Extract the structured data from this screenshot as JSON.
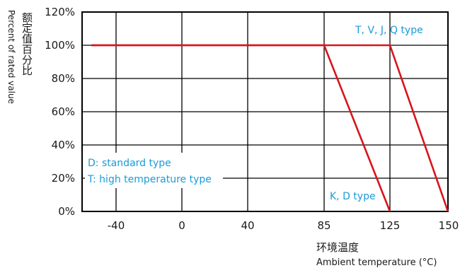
{
  "chart_data": {
    "type": "line",
    "ylabel_cn": "额定值百分比",
    "ylabel_en": "Percent of rated value",
    "xlabel_cn": "环境温度",
    "xlabel_en": "Ambient temperature (°C)",
    "x_ticks": [
      "-40",
      "0",
      "40",
      "85",
      "125",
      "150"
    ],
    "y_ticks": [
      "0%",
      "20%",
      "40%",
      "60%",
      "80%",
      "100%",
      "120%"
    ],
    "ylim": [
      0,
      120
    ],
    "grid": true,
    "series": [
      {
        "name": "T, V, J, Q type",
        "color": "#d8141c",
        "x": [
          -55,
          125,
          150
        ],
        "y": [
          100,
          100,
          0
        ]
      },
      {
        "name": "K, D type",
        "color": "#d8141c",
        "x": [
          -55,
          85,
          125
        ],
        "y": [
          100,
          100,
          0
        ]
      }
    ],
    "annotations": {
      "tvjq": "T, V, J, Q type",
      "kd": "K, D type",
      "legend_d": "D: standard type",
      "legend_t": "T: high temperature type"
    }
  }
}
